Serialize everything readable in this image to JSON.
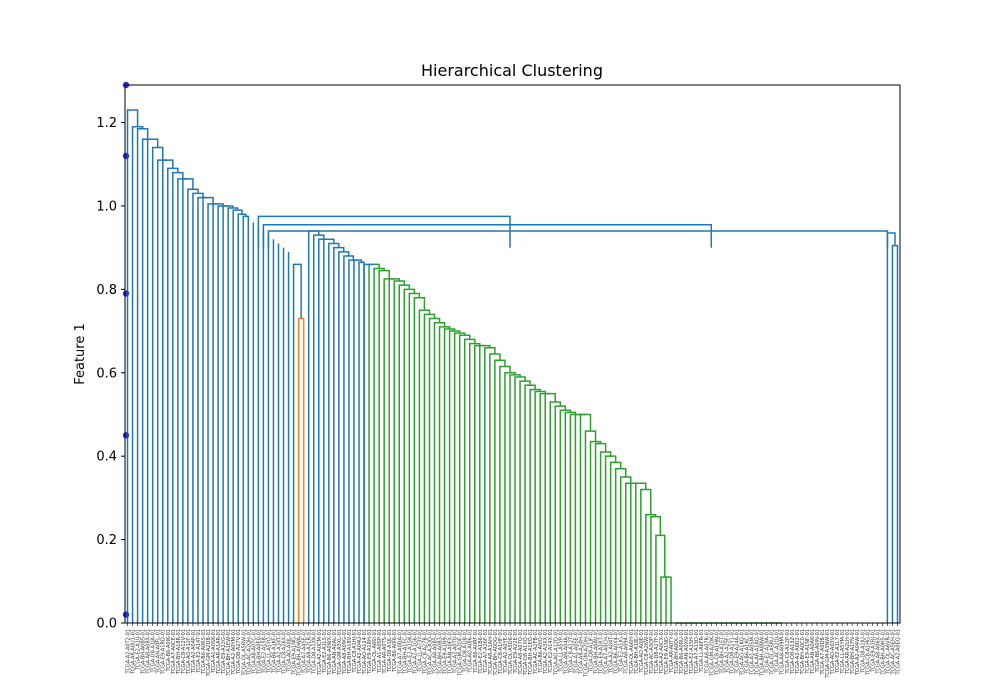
{
  "chart_data": {
    "type": "dendrogram",
    "title": "Hierarchical Clustering",
    "ylabel": "Feature 1",
    "xlabel": "",
    "ylim": [
      0,
      1.29
    ],
    "yticks": [
      0.0,
      0.2,
      0.4,
      0.6,
      0.8,
      1.0,
      1.2
    ],
    "ytick_labels": [
      "0.0",
      "0.2",
      "0.4",
      "0.6",
      "0.8",
      "1.0",
      "1.2"
    ],
    "leaf_count": 154,
    "colors": {
      "above_threshold": "#1f77b4",
      "cluster_orange": "#ff7f0e",
      "cluster_green": "#2ca02c",
      "marker": "#2f2fd8",
      "axes": "#000000"
    },
    "scatter_markers_y": [
      0.02,
      0.45,
      0.79,
      1.12,
      1.29
    ],
    "spine_heights": [
      1.23,
      1.19,
      1.185,
      1.16,
      1.16,
      1.14,
      1.11,
      1.11,
      1.09,
      1.08,
      1.065,
      1.065,
      1.04,
      1.03,
      1.02,
      1.02,
      1.005,
      1.005,
      1.0,
      1.0,
      0.995,
      0.99,
      0.98,
      0.975
    ],
    "orange_cluster_height": 0.73,
    "orange_side_height": 0.86,
    "green_blue_spine": [
      0.94,
      0.93,
      0.92,
      0.92,
      0.91,
      0.9,
      0.89,
      0.88,
      0.87,
      0.87,
      0.865
    ],
    "green_top_height": 0.86,
    "green_spine": [
      0.86,
      0.85,
      0.845,
      0.825,
      0.825,
      0.82,
      0.81,
      0.8,
      0.79,
      0.78,
      0.75,
      0.74,
      0.73,
      0.72,
      0.71,
      0.705,
      0.7,
      0.695,
      0.69,
      0.68,
      0.67,
      0.665,
      0.665,
      0.66,
      0.645,
      0.63,
      0.615,
      0.6,
      0.595,
      0.59,
      0.58,
      0.57,
      0.56,
      0.555,
      0.55,
      0.55,
      0.53,
      0.52,
      0.51,
      0.505,
      0.5,
      0.5,
      0.5,
      0.46,
      0.435,
      0.43,
      0.41,
      0.4,
      0.385,
      0.37,
      0.35,
      0.335,
      0.335,
      0.335,
      0.32,
      0.26,
      0.255,
      0.21,
      0.11,
      0.11
    ],
    "zero_block_leaves": 21,
    "right_pair_heights": [
      0.94,
      0.935,
      0.905
    ],
    "long_links": [
      {
        "height": 0.975,
        "span_to_leaf": 76
      },
      {
        "height": 0.955,
        "span_to_leaf": 116
      },
      {
        "height": 0.94,
        "span_to_leaf": 151
      }
    ],
    "leaf_labels": [
      "TCGA-A2-A0T2-01",
      "TCGA-AR-A0U1-01",
      "TCGA-E2-A1IJ-01",
      "TCGA-BH-A0BS-01",
      "TCGA-A8-A08X-01",
      "TCGA-D8-A1JA-01",
      "TCGA-AN-A0FL-01",
      "TCGA-E9-A1RD-01",
      "TCGA-B6-A0IK-01",
      "TCGA-A7-A0CE-01",
      "TCGA-BH-A18R-01",
      "TCGA-C8-A12V-01",
      "TCGA-AO-A12F-01",
      "TCGA-A2-A04P-01",
      "TCGA-E2-A14T-01",
      "TCGA-B6-A0RS-01",
      "TCGA-GM-A2DB-01",
      "TCGA-A1-A0SK-01",
      "TCGA-AR-A1AR-01",
      "TCGA-E9-A22G-01",
      "TCGA-BH-A1EW-01",
      "TCGA-A2-A0YM-01",
      "TCGA-D8-A27V-01",
      "TCGA-OL-A5RW-01",
      "TCGA-AC-A2QH-01",
      "TCGA-A8-A07C-01",
      "TCGA-BH-A0E0-01",
      "TCGA-E2-A158-01",
      "TCGA-LL-A5YO-01",
      "TCGA-B6-A1KF-01",
      "TCGA-A2-A3XT-01",
      "TCGA-C8-A26X-01",
      "TCGA-AO-A0JL-01",
      "TCGA-E9-A1NG-01",
      "TCGA-BH-A0WA-01",
      "TCGA-A7-A4SE-01",
      "TCGA-AR-A2LR-01",
      "TCGA-D8-A1XK-01",
      "TCGA-A2-A0CM-01",
      "TCGA-E2-A1LS-01",
      "TCGA-B6-A0WX-01",
      "TCGA-AN-A0AL-01",
      "TCGA-GM-A3XL-01",
      "TCGA-A8-A09G-01",
      "TCGA-BH-A18V-01",
      "TCGA-C8-A1HJ-01",
      "TCGA-A2-A04U-01",
      "TCGA-AO-A124-01",
      "TCGA-E9-A1RH-01",
      "TCGA-OL-A66I-01",
      "TCGA-A1-A0SP-01",
      "TCGA-AR-A0TS-01",
      "TCGA-D8-A1JL-01",
      "TCGA-B6-A0I6-01",
      "TCGA-A7-A0DA-01",
      "TCGA-BH-A1FC-01",
      "TCGA-E2-A15K-01",
      "TCGA-A2-A1G6-01",
      "TCGA-LL-A73Y-01",
      "TCGA-C8-A27B-01",
      "TCGA-AC-A3OD-01",
      "TCGA-A8-A08S-01",
      "TCGA-BH-A0B3-01",
      "TCGA-E9-A1N9-01",
      "TCGA-AN-A0FX-01",
      "TCGA-A2-A0T0-01",
      "TCGA-GM-A2DF-01",
      "TCGA-D8-A1J8-01",
      "TCGA-AO-A0J6-01",
      "TCGA-B6-A0RT-01",
      "TCGA-E2-A1B6-01",
      "TCGA-A7-A26F-01",
      "TCGA-AR-A1AH-01",
      "TCGA-BH-A0DG-01",
      "TCGA-C8-A1HF-01",
      "TCGA-A2-A0YE-01",
      "TCGA-OL-A5D6-01",
      "TCGA-E9-A22E-01",
      "TCGA-A8-A07O-01",
      "TCGA-D8-A1XQ-01",
      "TCGA-BH-A1EO-01",
      "TCGA-AC-A2FB-01",
      "TCGA-B6-A0IQ-01",
      "TCGA-A2-A3XX-01",
      "TCGA-E2-A14X-01",
      "TCGA-AO-A12D-01",
      "TCGA-LL-A5YP-01",
      "TCGA-AN-A04A-01",
      "TCGA-C8-A12T-01",
      "TCGA-A1-A0SE-01",
      "TCGA-AR-A24H-01",
      "TCGA-GM-A2DH-01",
      "TCGA-D8-A1JF-01",
      "TCGA-BH-A0AV-01",
      "TCGA-E9-A1R7-01",
      "TCGA-A7-A0CH-01",
      "TCGA-A2-A04T-01",
      "TCGA-B6-A0X4-01",
      "TCGA-E2-A1IG-01",
      "TCGA-A8-A094-01",
      "TCGA-OL-A66H-01",
      "TCGA-BH-A18L-01",
      "TCGA-AO-A0JE-01",
      "TCGA-C8-A26W-01",
      "TCGA-AC-A3QP-01",
      "TCGA-D8-A27F-01",
      "TCGA-A2-A0CX-01",
      "TCGA-E9-A1ND-01",
      "TCGA-AR-A0TY-01",
      "TCGA-BH-A0DL-01",
      "TCGA-B6-A0RU-01",
      "TCGA-AN-A0XN-01",
      "TCGA-E2-A15H-01",
      "TCGA-A7-A13D-01",
      "TCGA-LL-A6FR-01",
      "TCGA-A8-A07R-01",
      "TCGA-GM-A2DK-01",
      "TCGA-C8-A1HN-01",
      "TCGA-BH-A1ET-01",
      "TCGA-A2-A25F-01",
      "TCGA-D8-A1Y1-01",
      "TCGA-E9-A24A-01",
      "TCGA-AO-A1KQ-01",
      "TCGA-B6-A1KC-01",
      "TCGA-A1-A0SM-01",
      "TCGA-AR-A1AQ-01",
      "TCGA-BH-A0BW-01",
      "TCGA-E2-A10A-01",
      "TCGA-OL-A5RU-01",
      "TCGA-AC-A2QJ-01",
      "TCGA-A8-A09M-01",
      "TCGA-C8-A12P-01",
      "TCGA-D8-A13Z-01",
      "TCGA-A2-A0D2-01",
      "TCGA-BH-A0C0-01",
      "TCGA-E9-A1NF-01",
      "TCGA-AN-A0AK-01",
      "TCGA-B6-A0IN-01",
      "TCGA-A7-A0DB-01",
      "TCGA-GM-A3NW-01",
      "TCGA-AO-A03V-01",
      "TCGA-E2-A1L7-01",
      "TCGA-LL-A5YM-01",
      "TCGA-AR-A2LH-01",
      "TCGA-BH-A1FN-01",
      "TCGA-A2-A04W-01",
      "TCGA-D8-A1JU-01",
      "TCGA-C8-A1HG-01",
      "TCGA-E9-A1RI-01",
      "TCGA-A8-A06X-01",
      "TCGA-BH-A0H5-01",
      "TCGA-OL-A6VR-01",
      "TCGA-AC-A5EH-01",
      "TCGA-A2-A0EQ-01"
    ]
  }
}
